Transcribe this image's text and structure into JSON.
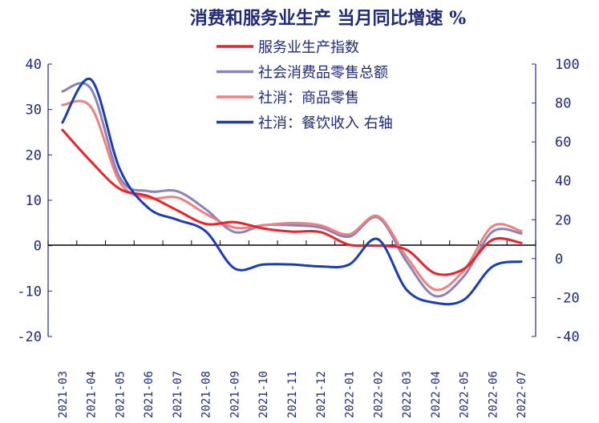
{
  "chart_data": {
    "type": "line",
    "title": "消费和服务业生产 当月同比增速 %",
    "categories": [
      "2021-03",
      "2021-04",
      "2021-05",
      "2021-06",
      "2021-07",
      "2021-08",
      "2021-09",
      "2021-10",
      "2021-11",
      "2021-12",
      "2022-01",
      "2022-02",
      "2022-03",
      "2022-04",
      "2022-05",
      "2022-06",
      "2022-07"
    ],
    "left_axis": {
      "min": -20,
      "max": 40,
      "ticks": [
        -20,
        -10,
        0,
        10,
        20,
        30,
        40
      ]
    },
    "right_axis": {
      "min": -40,
      "max": 100,
      "ticks": [
        -40,
        -20,
        0,
        20,
        40,
        60,
        80,
        100
      ]
    },
    "series": [
      {
        "name": "服务业生产指数",
        "axis": "left",
        "color": "#e8242a",
        "values": [
          25.5,
          18.5,
          12.5,
          10.9,
          7.8,
          4.8,
          5.2,
          3.8,
          3.1,
          3.0,
          0.2,
          0.0,
          -0.9,
          -6.1,
          -5.1,
          1.3,
          0.6
        ]
      },
      {
        "name": "社会消费品零售总额",
        "axis": "left",
        "color": "#8b82b8",
        "values": [
          34.0,
          34.5,
          15.0,
          12.0,
          12.0,
          8.0,
          3.0,
          4.5,
          4.5,
          4.0,
          2.0,
          6.2,
          -3.5,
          -11.1,
          -6.7,
          3.1,
          2.7
        ]
      },
      {
        "name": "社消：商品零售",
        "axis": "left",
        "color": "#f08080",
        "values": [
          31.0,
          30.5,
          14.0,
          10.5,
          10.6,
          7.0,
          4.0,
          4.5,
          5.0,
          4.5,
          2.5,
          6.5,
          -2.5,
          -9.7,
          -5.4,
          4.3,
          3.2
        ]
      },
      {
        "name": "社消：餐饮收入 右轴",
        "axis": "right",
        "color": "#1a3db5",
        "values": [
          70.0,
          92.0,
          46.0,
          26.0,
          20.0,
          14.0,
          -5.0,
          -3.0,
          -3.0,
          -4.0,
          -3.0,
          10.0,
          -16.0,
          -22.7,
          -21.1,
          -4.0,
          -1.5
        ]
      }
    ],
    "legend_position": "top-center",
    "grid": false
  }
}
